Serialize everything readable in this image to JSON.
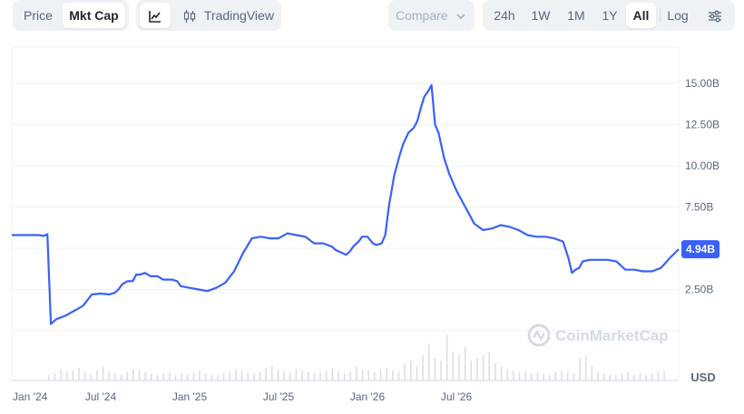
{
  "toolbar": {
    "price_label": "Price",
    "mktcap_label": "Mkt Cap",
    "line_icon": "line-chart-icon",
    "tradingview_icon": "candlestick-icon",
    "tradingview_label": "TradingView",
    "compare_label": "Compare",
    "compare_icon": "chevron-down-icon",
    "ranges": [
      "24h",
      "1W",
      "1M",
      "1Y",
      "All"
    ],
    "active_range": "All",
    "log_label": "Log",
    "settings_icon": "sliders-icon"
  },
  "watermark": "CoinMarketCap",
  "currency_label": "USD",
  "chart_data": {
    "type": "line",
    "series": [
      {
        "color": "#3861fb",
        "x": [
          0.0,
          0.05,
          0.1,
          0.15,
          0.18,
          0.2,
          0.22,
          0.25,
          0.3,
          0.35,
          0.4,
          0.45,
          0.5,
          0.55,
          0.58,
          0.6,
          0.62,
          0.65,
          0.68,
          0.7,
          0.72,
          0.75,
          0.78,
          0.82,
          0.85,
          0.88,
          0.9,
          0.93,
          0.95,
          1.0,
          1.05,
          1.1,
          1.15,
          1.2,
          1.25,
          1.3,
          1.35,
          1.4,
          1.45,
          1.5,
          1.55,
          1.6,
          1.65,
          1.7,
          1.75,
          1.8,
          1.82,
          1.84,
          1.86,
          1.88,
          1.9,
          1.92,
          1.95,
          1.97,
          2.0,
          2.03,
          2.05,
          2.08,
          2.1,
          2.12,
          2.15,
          2.18,
          2.2,
          2.23,
          2.26,
          2.28,
          2.3,
          2.32,
          2.34,
          2.36,
          2.38,
          2.4,
          2.43,
          2.46,
          2.5,
          2.55,
          2.6,
          2.65,
          2.7,
          2.75,
          2.8,
          2.85,
          2.9,
          2.95,
          3.0,
          3.05,
          3.1,
          3.13,
          3.15,
          3.17,
          3.19,
          3.21,
          3.25,
          3.3,
          3.35,
          3.4,
          3.45,
          3.5,
          3.55,
          3.6,
          3.65,
          3.7,
          3.75
        ],
        "y": [
          5.8,
          5.8,
          5.8,
          5.8,
          5.75,
          5.85,
          0.4,
          0.7,
          0.9,
          1.2,
          1.5,
          2.2,
          2.25,
          2.2,
          2.3,
          2.5,
          2.8,
          3.0,
          3.0,
          3.4,
          3.4,
          3.5,
          3.3,
          3.3,
          3.1,
          3.1,
          3.1,
          3.0,
          2.7,
          2.6,
          2.5,
          2.4,
          2.6,
          2.9,
          3.6,
          4.7,
          5.6,
          5.7,
          5.6,
          5.6,
          5.9,
          5.8,
          5.7,
          5.3,
          5.3,
          5.1,
          4.9,
          4.8,
          4.7,
          4.6,
          4.8,
          5.1,
          5.4,
          5.7,
          5.7,
          5.3,
          5.2,
          5.3,
          5.8,
          7.5,
          9.4,
          10.6,
          11.3,
          12.0,
          12.3,
          12.7,
          13.5,
          14.2,
          14.5,
          14.9,
          12.5,
          12.0,
          10.5,
          9.5,
          8.5,
          7.5,
          6.5,
          6.1,
          6.2,
          6.4,
          6.3,
          6.1,
          5.8,
          5.7,
          5.7,
          5.6,
          5.4,
          4.4,
          3.5,
          3.7,
          3.8,
          4.2,
          4.3,
          4.3,
          4.3,
          4.2,
          3.7,
          3.7,
          3.6,
          3.6,
          3.8,
          4.4,
          4.94
        ]
      }
    ],
    "xlabels": [
      "Jan '24",
      "Jul '24",
      "Jan '25",
      "Jul '25",
      "Jan '26",
      "Jul '26"
    ],
    "ytick_labels": [
      "2.50B",
      "5.00B",
      "7.50B",
      "10.00B",
      "12.50B",
      "15.00B"
    ],
    "yticks": [
      2.5,
      5.0,
      7.5,
      10.0,
      12.5,
      15.0
    ],
    "ylim": [
      0,
      17.2
    ],
    "current_value_label": "4.94B",
    "volume": [
      0.2,
      0.25,
      0.4,
      0.3,
      0.35,
      0.45,
      0.3,
      0.2,
      0.35,
      0.5,
      0.3,
      0.25,
      0.2,
      0.3,
      0.4,
      0.35,
      0.3,
      0.25,
      0.2,
      0.25,
      0.3,
      0.2,
      0.25,
      0.2,
      0.3,
      0.35,
      0.25,
      0.2,
      0.2,
      0.25,
      0.3,
      0.4,
      0.35,
      0.3,
      0.25,
      0.3,
      0.45,
      0.5,
      0.4,
      0.35,
      0.3,
      0.4,
      0.35,
      0.3,
      0.25,
      0.3,
      0.35,
      0.4,
      0.3,
      0.25,
      0.3,
      0.5,
      0.4,
      0.35,
      0.3,
      0.4,
      0.45,
      0.35,
      0.3,
      0.6,
      0.7,
      0.5,
      0.9,
      1.3,
      0.8,
      0.7,
      1.6,
      1.0,
      0.9,
      1.2,
      0.7,
      0.8,
      0.9,
      1.0,
      0.6,
      0.5,
      0.4,
      0.35,
      0.3,
      0.3,
      0.25,
      0.3,
      0.25,
      0.2,
      0.3,
      0.35,
      0.3,
      0.25,
      0.8,
      0.9,
      0.5,
      0.3,
      0.25,
      0.2,
      0.2,
      0.25,
      0.3,
      0.2,
      0.25,
      0.2,
      0.25,
      0.3,
      0.35
    ],
    "colors": {
      "line": "#3861fb",
      "label_bg": "#3861fb",
      "grid": "#eff2f5",
      "volume": "#d8dde6",
      "axis_text": "#58667e"
    }
  }
}
